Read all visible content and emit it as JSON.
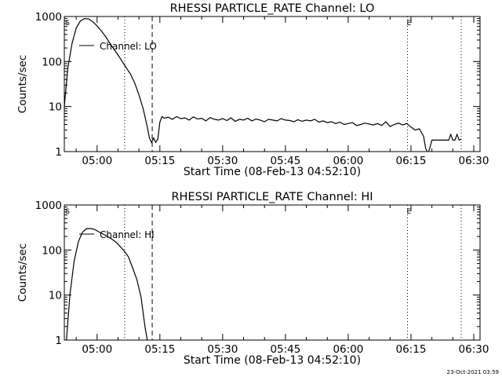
{
  "chart_data": [
    {
      "type": "line",
      "title": "RHESSI PARTICLE_RATE Channel: LO",
      "xlabel": "Start Time (08-Feb-13 04:52:10)",
      "ylabel": "Counts/sec",
      "yscale": "log",
      "xlim": [
        "04:52:10",
        "06:31:30"
      ],
      "ylim": [
        1,
        1000
      ],
      "x_ticks": [
        "05:00",
        "05:15",
        "05:30",
        "05:45",
        "06:00",
        "06:15",
        "06:30"
      ],
      "y_ticks": [
        "1",
        "10",
        "100",
        "1000"
      ],
      "legend": {
        "entries": [
          "Channel: LO"
        ],
        "placement": "top-left"
      },
      "markers": [
        {
          "label": "S",
          "time": "04:52:35"
        },
        {
          "label": "E",
          "time": "06:14:10"
        }
      ],
      "vlines": [
        {
          "time": "05:06:35",
          "style": "dotted"
        },
        {
          "time": "05:13:10",
          "style": "dashed"
        },
        {
          "time": "06:14:10",
          "style": "dotted"
        },
        {
          "time": "06:27:00",
          "style": "dotted"
        }
      ],
      "series": [
        {
          "x": [
            "04:52:10",
            "04:53:00",
            "04:54:00",
            "04:55:00",
            "04:56:00",
            "04:57:00",
            "04:58:00",
            "04:59:00",
            "05:00:00",
            "05:01:00",
            "05:02:00",
            "05:03:00",
            "05:04:00",
            "05:05:00",
            "05:06:00",
            "05:07:00",
            "05:08:00",
            "05:09:00",
            "05:10:00",
            "05:11:00",
            "05:12:00",
            "05:12:30",
            "05:13:00",
            "05:13:30",
            "05:14:00",
            "05:14:30",
            "05:15:00",
            "05:15:30",
            "05:16:00",
            "05:17:00",
            "05:18:00",
            "05:19:00",
            "05:20:00",
            "05:21:00",
            "05:22:00",
            "05:23:00",
            "05:24:00",
            "05:25:00",
            "05:26:00",
            "05:27:00",
            "05:28:00",
            "05:29:00",
            "05:30:00",
            "05:31:00",
            "05:32:00",
            "05:33:00",
            "05:34:00",
            "05:35:00",
            "05:36:00",
            "05:37:00",
            "05:38:00",
            "05:39:00",
            "05:40:00",
            "05:41:00",
            "05:42:00",
            "05:43:00",
            "05:44:00",
            "05:45:00",
            "05:46:00",
            "05:47:00",
            "05:48:00",
            "05:49:00",
            "05:50:00",
            "05:51:00",
            "05:52:00",
            "05:53:00",
            "05:54:00",
            "05:55:00",
            "05:56:00",
            "05:57:00",
            "05:58:00",
            "05:59:00",
            "06:00:00",
            "06:01:00",
            "06:02:00",
            "06:03:00",
            "06:04:00",
            "06:05:00",
            "06:06:00",
            "06:07:00",
            "06:08:00",
            "06:09:00",
            "06:10:00",
            "06:11:00",
            "06:12:00",
            "06:13:00",
            "06:14:00",
            "06:15:00",
            "06:16:00",
            "06:17:00",
            "06:18:00",
            "06:18:30",
            "06:19:00",
            "06:19:30",
            "06:20:00",
            "06:21:00",
            "06:22:00",
            "06:23:00",
            "06:24:00",
            "06:24:30",
            "06:25:00",
            "06:25:30",
            "06:26:00",
            "06:26:30",
            "06:27:00"
          ],
          "y": [
            10,
            70,
            250,
            550,
            800,
            900,
            880,
            760,
            620,
            480,
            360,
            260,
            190,
            140,
            100,
            72,
            52,
            33,
            18,
            9,
            3.5,
            2.0,
            1.6,
            2.0,
            1.6,
            1.9,
            4.5,
            6.0,
            5.5,
            5.8,
            5.2,
            6.0,
            5.4,
            5.6,
            5.0,
            5.9,
            5.3,
            5.5,
            4.8,
            5.7,
            5.2,
            5.0,
            5.4,
            4.9,
            5.6,
            4.7,
            5.2,
            5.0,
            5.5,
            4.8,
            5.3,
            5.0,
            4.6,
            5.2,
            5.0,
            4.8,
            5.4,
            5.0,
            4.9,
            4.6,
            5.1,
            4.7,
            5.0,
            4.8,
            5.2,
            4.5,
            4.8,
            4.4,
            4.6,
            4.2,
            4.5,
            4.0,
            4.2,
            4.4,
            3.8,
            4.0,
            4.3,
            4.1,
            3.9,
            4.2,
            3.8,
            4.6,
            3.6,
            4.0,
            4.3,
            3.9,
            4.2,
            3.5,
            3.0,
            3.2,
            2.2,
            1.2,
            0.9,
            1.2,
            1.8,
            1.8,
            1.8,
            1.8,
            1.8,
            2.4,
            1.8,
            1.8,
            2.4,
            1.8,
            1.9
          ]
        }
      ]
    },
    {
      "type": "line",
      "title": "RHESSI PARTICLE_RATE Channel: HI",
      "xlabel": "Start Time (08-Feb-13 04:52:10)",
      "ylabel": "Counts/sec",
      "yscale": "log",
      "xlim": [
        "04:52:10",
        "06:31:30"
      ],
      "ylim": [
        1,
        1000
      ],
      "x_ticks": [
        "05:00",
        "05:15",
        "05:30",
        "05:45",
        "06:00",
        "06:15",
        "06:30"
      ],
      "y_ticks": [
        "1",
        "10",
        "100",
        "1000"
      ],
      "legend": {
        "entries": [
          "Channel: HI"
        ],
        "placement": "top-left"
      },
      "markers": [
        {
          "label": "S",
          "time": "04:52:35"
        },
        {
          "label": "E",
          "time": "06:14:10"
        }
      ],
      "vlines": [
        {
          "time": "05:06:35",
          "style": "dotted"
        },
        {
          "time": "05:13:10",
          "style": "dashed"
        },
        {
          "time": "06:14:10",
          "style": "dotted"
        },
        {
          "time": "06:27:00",
          "style": "dotted"
        }
      ],
      "series": [
        {
          "x": [
            "04:52:40",
            "04:53:30",
            "04:54:30",
            "04:55:30",
            "04:56:30",
            "04:57:30",
            "04:58:30",
            "04:59:30",
            "05:00:30",
            "05:01:30",
            "05:02:30",
            "05:03:30",
            "05:04:30",
            "05:05:30",
            "05:06:30",
            "05:07:30",
            "05:08:30",
            "05:09:30",
            "05:10:30",
            "05:11:00",
            "05:11:30",
            "05:12:00"
          ],
          "y": [
            1,
            10,
            55,
            150,
            250,
            300,
            300,
            285,
            250,
            225,
            200,
            175,
            150,
            120,
            95,
            70,
            40,
            22,
            9,
            4,
            1.8,
            1
          ]
        }
      ]
    }
  ],
  "footer": {
    "timestamp": "23-Oct-2021 03:59"
  }
}
